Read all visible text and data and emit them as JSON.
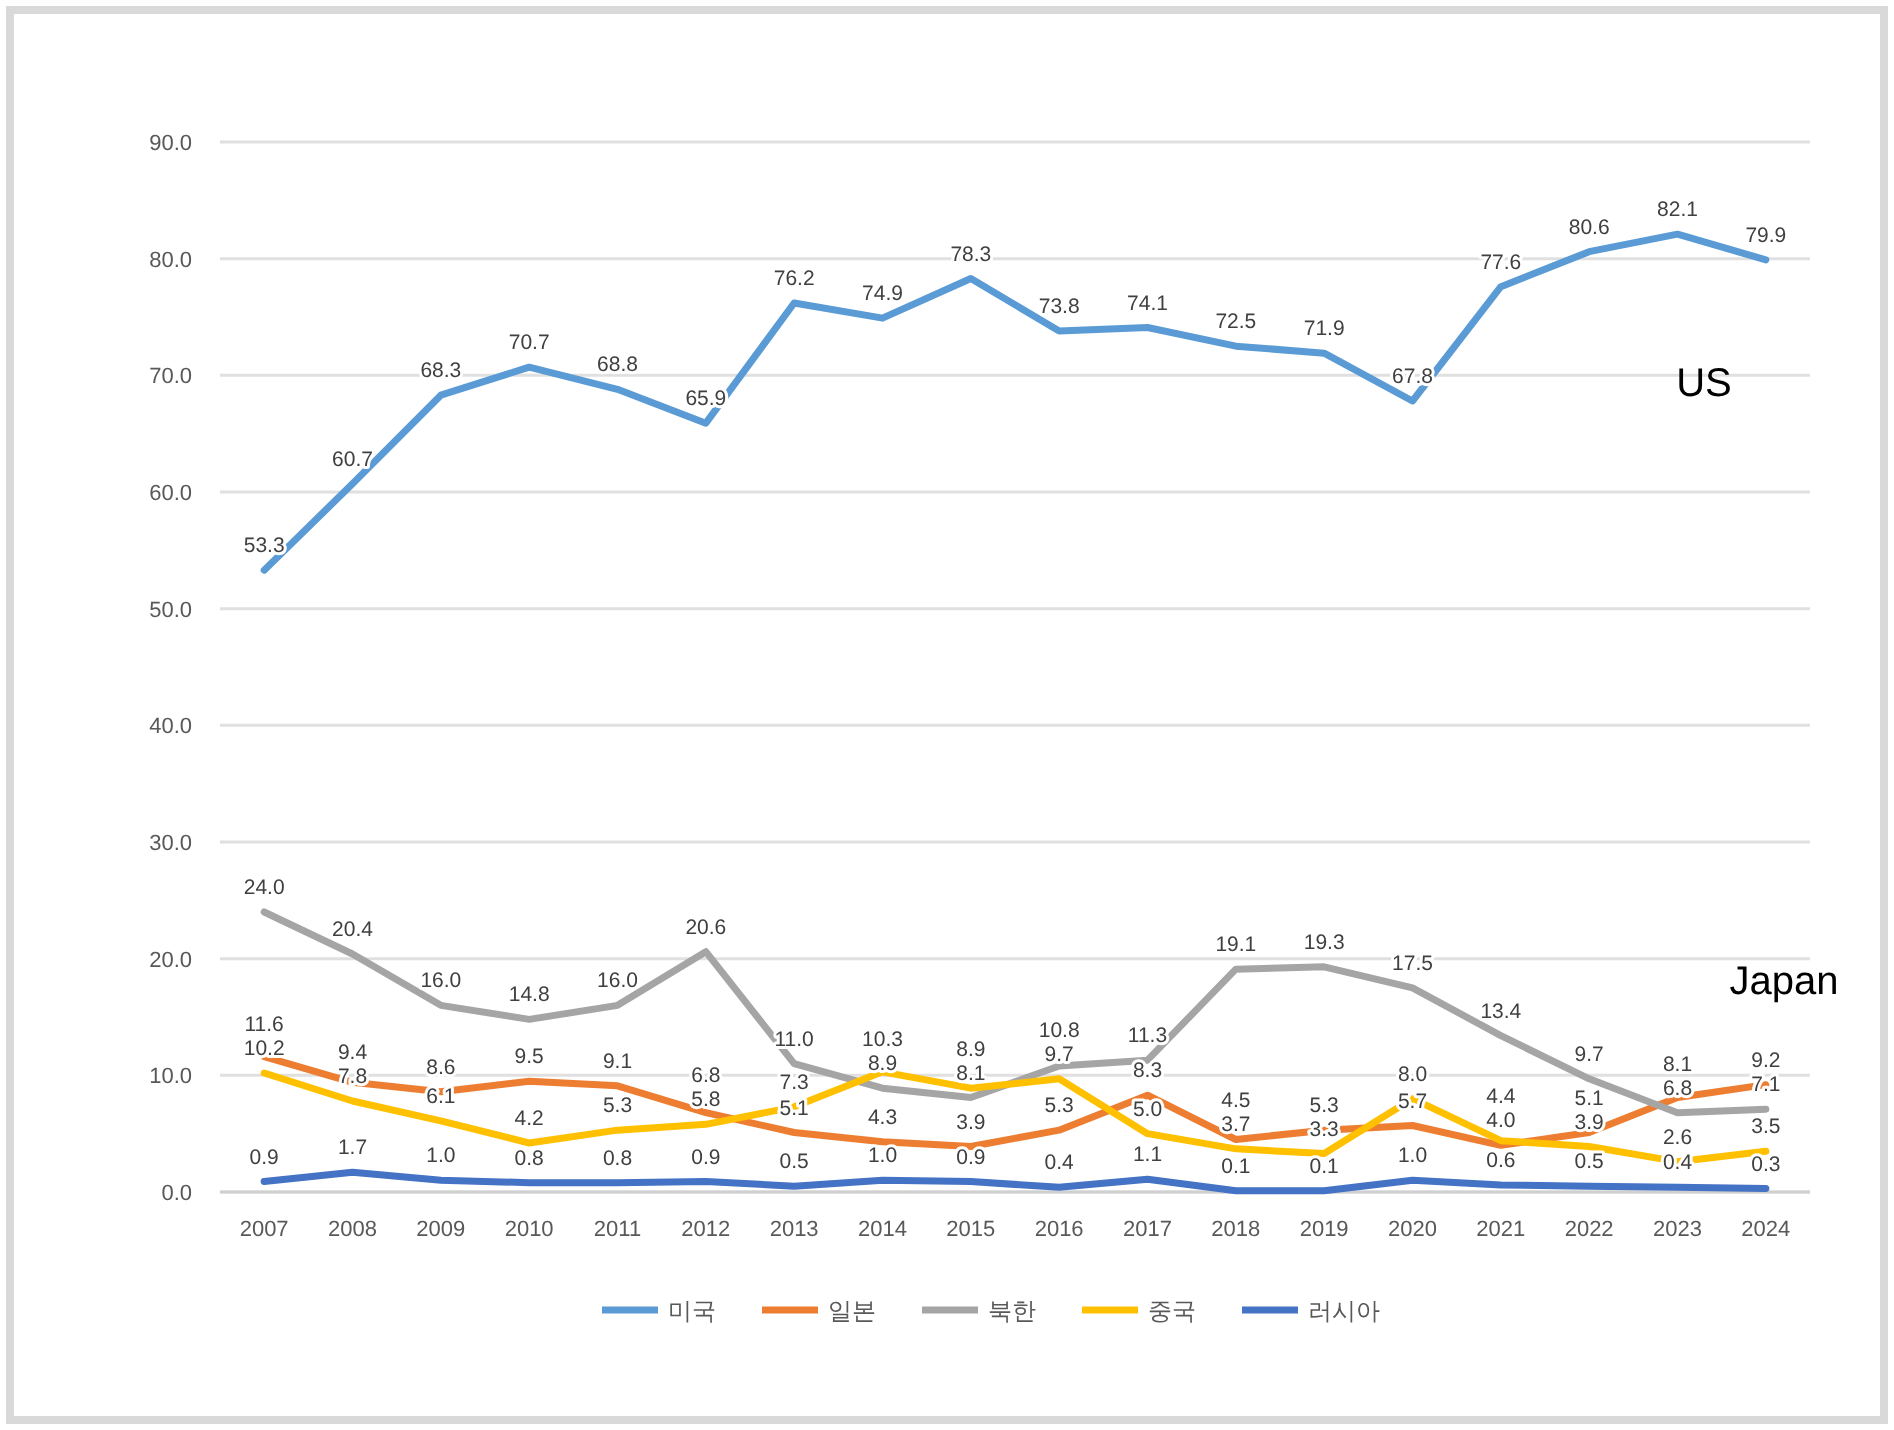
{
  "chart_data": {
    "type": "line",
    "categories": [
      "2007",
      "2008",
      "2009",
      "2010",
      "2011",
      "2012",
      "2013",
      "2014",
      "2015",
      "2016",
      "2017",
      "2018",
      "2019",
      "2020",
      "2021",
      "2022",
      "2023",
      "2024"
    ],
    "series": [
      {
        "name": "미국",
        "color": "#5b9bd5",
        "values": [
          53.3,
          60.7,
          68.3,
          70.7,
          68.8,
          65.9,
          76.2,
          74.9,
          78.3,
          73.8,
          74.1,
          72.5,
          71.9,
          67.8,
          77.6,
          80.6,
          82.1,
          79.9
        ],
        "value_labels": [
          "53.3",
          "60.7",
          "68.3",
          "70.7",
          "68.8",
          "65.9",
          "76.2",
          "74.9",
          "78.3",
          "73.8",
          "74.1",
          "72.5",
          "71.9",
          "67.8",
          "77.6",
          "80.6",
          "82.1",
          "79.9"
        ]
      },
      {
        "name": "일본",
        "color": "#ed7d31",
        "values": [
          11.6,
          9.4,
          8.6,
          9.5,
          9.1,
          6.8,
          5.1,
          4.3,
          3.9,
          5.3,
          8.3,
          4.5,
          5.3,
          5.7,
          4.0,
          5.1,
          8.1,
          9.2
        ],
        "value_labels": [
          "11.6",
          "9.4",
          "8.6",
          "9.5",
          "9.1",
          "6.8",
          "5.1",
          "4.3",
          "3.9",
          "5.3",
          "8.3",
          "4.5",
          "5.3",
          "5.7",
          "4.0",
          "5.1",
          "8.1",
          "9.2"
        ]
      },
      {
        "name": "북한",
        "color": "#a5a5a5",
        "values": [
          24.0,
          20.4,
          16.0,
          14.8,
          16.0,
          20.6,
          11.0,
          8.9,
          8.1,
          10.8,
          11.3,
          19.1,
          19.3,
          17.5,
          13.4,
          9.7,
          6.8,
          7.1
        ],
        "value_labels": [
          "24.0",
          "20.4",
          "16.0",
          "14.8",
          "16.0",
          "20.6",
          "11.0",
          "8.9",
          "8.1",
          "10.8",
          "11.3",
          "19.1",
          "19.3",
          "17.5",
          "13.4",
          "9.7",
          "6.8",
          "7.1"
        ]
      },
      {
        "name": "중국",
        "color": "#ffc000",
        "values": [
          10.2,
          7.8,
          6.1,
          4.2,
          5.3,
          5.8,
          7.3,
          10.3,
          8.9,
          9.7,
          5.0,
          3.7,
          3.3,
          8.0,
          4.4,
          3.9,
          2.6,
          3.5
        ],
        "value_labels": [
          "10.2",
          "7.8",
          "6.1",
          "4.2",
          "5.3",
          "5.8",
          "7.3",
          "10.3",
          "8.9",
          "9.7",
          "5.0",
          "3.7",
          "3.3",
          "8.0",
          "4.4",
          "3.9",
          "2.6",
          "3.5"
        ]
      },
      {
        "name": "러시아",
        "color": "#4472c4",
        "values": [
          0.9,
          1.7,
          1.0,
          0.8,
          0.8,
          0.9,
          0.5,
          1.0,
          0.9,
          0.4,
          1.1,
          0.1,
          0.1,
          1.0,
          0.6,
          0.5,
          0.4,
          0.3
        ],
        "value_labels": [
          "0.9",
          "1.7",
          "1.0",
          "0.8",
          "0.8",
          "0.9",
          "0.5",
          "1.0",
          "0.9",
          "0.4",
          "1.1",
          "0.1",
          "0.1",
          "1.0",
          "0.6",
          "0.5",
          "0.4",
          "0.3"
        ]
      }
    ],
    "ylim": [
      0,
      90
    ],
    "yticks": [
      {
        "value": 0,
        "label": "0.0"
      },
      {
        "value": 10,
        "label": "10.0"
      },
      {
        "value": 20,
        "label": "20.0"
      },
      {
        "value": 30,
        "label": "30.0"
      },
      {
        "value": 40,
        "label": "40.0"
      },
      {
        "value": 50,
        "label": "50.0"
      },
      {
        "value": 60,
        "label": "60.0"
      },
      {
        "value": 70,
        "label": "70.0"
      },
      {
        "value": 80,
        "label": "80.0"
      },
      {
        "value": 90,
        "label": "90.0"
      }
    ],
    "grid": "y",
    "legend": "bottom",
    "marker": "none",
    "line_style": "solid",
    "annotations": [
      "US",
      "Japan"
    ]
  }
}
